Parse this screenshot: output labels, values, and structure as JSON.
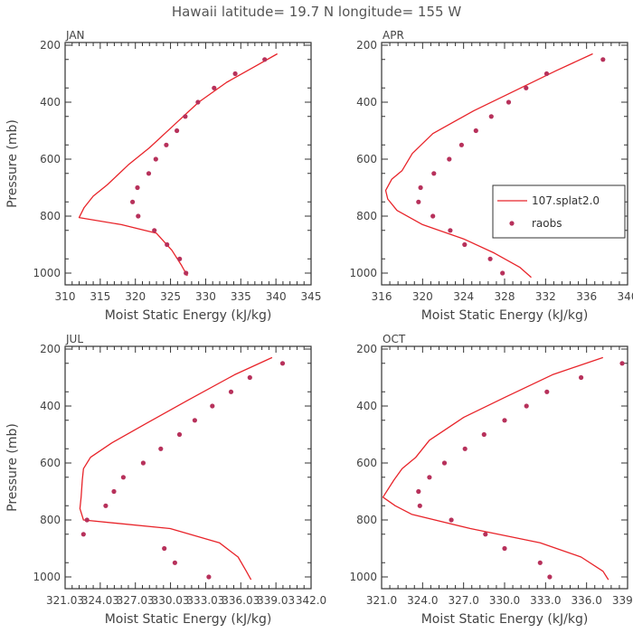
{
  "figure_title": "Hawaii  latitude= 19.7 N longitude= 155 W",
  "chart_data": [
    {
      "type": "line",
      "panel": "JAN",
      "xlabel": "Moist Static Energy (kJ/kg)",
      "ylabel": "Pressure (mb)",
      "xlim": [
        310,
        345
      ],
      "ylim": [
        1000,
        200
      ],
      "x_ticks": [
        "310",
        "315",
        "320",
        "325",
        "330",
        "335",
        "340",
        "345"
      ],
      "x_tick_values": [
        310,
        315,
        320,
        325,
        330,
        335,
        340,
        345
      ],
      "y_ticks": [
        "200",
        "400",
        "600",
        "800",
        "1000"
      ],
      "y_tick_values": [
        200,
        400,
        600,
        800,
        1000
      ],
      "series": [
        {
          "name": "107.splat2.0",
          "kind": "line",
          "x": [
            340.2,
            337,
            333,
            329,
            325.5,
            322,
            319,
            316,
            314,
            312.7,
            312,
            318,
            323,
            325.2,
            326.5,
            327.4
          ],
          "y": [
            230,
            275,
            330,
            400,
            480,
            560,
            620,
            690,
            730,
            770,
            805,
            830,
            860,
            920,
            970,
            1010
          ]
        },
        {
          "name": "raobs",
          "kind": "points",
          "x": [
            338.4,
            334.2,
            331.2,
            328.9,
            327.1,
            325.9,
            324.4,
            322.9,
            321.9,
            320.3,
            319.6,
            320.4,
            322.7,
            324.5,
            326.3,
            327.2
          ],
          "y": [
            250,
            300,
            350,
            400,
            450,
            500,
            550,
            600,
            650,
            700,
            750,
            800,
            850,
            900,
            950,
            1000
          ]
        }
      ]
    },
    {
      "type": "line",
      "panel": "APR",
      "xlabel": "Moist Static Energy (kJ/kg)",
      "ylabel": "",
      "xlim": [
        316,
        340
      ],
      "ylim": [
        1000,
        200
      ],
      "x_ticks": [
        "316",
        "320",
        "324",
        "328",
        "332",
        "336",
        "340"
      ],
      "x_tick_values": [
        316,
        320,
        324,
        328,
        332,
        336,
        340
      ],
      "y_ticks": [
        "200",
        "400",
        "600",
        "800",
        "1000"
      ],
      "y_tick_values": [
        200,
        400,
        600,
        800,
        1000
      ],
      "legend": [
        "107.splat2.0",
        "raobs"
      ],
      "legend_position": "right-middle",
      "series": [
        {
          "name": "107.splat2.0",
          "kind": "line",
          "x": [
            336.6,
            333,
            329,
            325,
            321,
            319,
            318,
            317,
            316.4,
            316.6,
            317.5,
            320,
            324,
            327,
            329.5,
            330.6
          ],
          "y": [
            230,
            290,
            360,
            430,
            510,
            580,
            640,
            670,
            710,
            740,
            780,
            830,
            880,
            930,
            980,
            1015
          ]
        },
        {
          "name": "raobs",
          "kind": "points",
          "x": [
            337.6,
            332.1,
            330.1,
            328.4,
            326.7,
            325.2,
            323.8,
            322.6,
            321.1,
            319.8,
            319.6,
            321.0,
            322.7,
            324.1,
            326.6,
            327.8
          ],
          "y": [
            250,
            300,
            350,
            400,
            450,
            500,
            550,
            600,
            650,
            700,
            750,
            800,
            850,
            900,
            950,
            1000
          ]
        }
      ]
    },
    {
      "type": "line",
      "panel": "JUL",
      "xlabel": "Moist Static Energy (kJ/kg)",
      "ylabel": "Pressure (mb)",
      "xlim": [
        321.03,
        342.03
      ],
      "ylim": [
        1000,
        200
      ],
      "x_ticks": [
        "321.03",
        "324.03",
        "327.03",
        "330.03",
        "333.03",
        "336.03",
        "339.03",
        "342.0"
      ],
      "x_tick_values": [
        321.03,
        324.03,
        327.03,
        330.03,
        333.03,
        336.03,
        339.03,
        342.03
      ],
      "y_ticks": [
        "200",
        "400",
        "600",
        "800",
        "1000"
      ],
      "y_tick_values": [
        200,
        400,
        600,
        800,
        1000
      ],
      "series": [
        {
          "name": "107.splat2.0",
          "kind": "line",
          "x": [
            338.7,
            335.5,
            331.5,
            328,
            325,
            323.2,
            322.6,
            322.5,
            322.4,
            322.3,
            322.6,
            330,
            334.2,
            335.8,
            336.5,
            336.9
          ],
          "y": [
            230,
            290,
            380,
            460,
            530,
            580,
            620,
            660,
            720,
            760,
            800,
            830,
            880,
            930,
            980,
            1010
          ]
        },
        {
          "name": "raobs",
          "kind": "points",
          "x": [
            339.6,
            336.8,
            335.2,
            333.6,
            332.1,
            330.8,
            329.2,
            327.7,
            326.0,
            325.2,
            324.5,
            322.9,
            322.6,
            329.5,
            330.4,
            333.3
          ],
          "y": [
            250,
            300,
            350,
            400,
            450,
            500,
            550,
            600,
            650,
            700,
            750,
            800,
            850,
            900,
            950,
            1000
          ]
        }
      ]
    },
    {
      "type": "line",
      "panel": "OCT",
      "xlabel": "Moist Static Energy (kJ/kg)",
      "ylabel": "",
      "xlim": [
        321.0,
        339.0
      ],
      "ylim": [
        1000,
        200
      ],
      "x_ticks": [
        "321.0",
        "324.0",
        "327.0",
        "330.0",
        "333.0",
        "336.0",
        "339.0"
      ],
      "x_tick_values": [
        321,
        324,
        327,
        330,
        333,
        336,
        339
      ],
      "y_ticks": [
        "200",
        "400",
        "600",
        "800",
        "1000"
      ],
      "y_tick_values": [
        200,
        400,
        600,
        800,
        1000
      ],
      "series": [
        {
          "name": "107.splat2.0",
          "kind": "line",
          "x": [
            337.2,
            333.5,
            330,
            327,
            324.5,
            323.5,
            322.5,
            321.9,
            321.1,
            322,
            323.2,
            327.5,
            332.6,
            335.6,
            337.2,
            337.6
          ],
          "y": [
            230,
            290,
            370,
            440,
            520,
            580,
            620,
            660,
            720,
            750,
            780,
            830,
            880,
            930,
            980,
            1010
          ]
        },
        {
          "name": "raobs",
          "kind": "points",
          "x": [
            338.6,
            335.6,
            333.1,
            331.6,
            330.0,
            328.5,
            327.1,
            325.6,
            324.5,
            323.7,
            323.8,
            326.1,
            328.6,
            330.0,
            332.6,
            333.3
          ],
          "y": [
            250,
            300,
            350,
            400,
            450,
            500,
            550,
            600,
            650,
            700,
            750,
            800,
            850,
            900,
            950,
            1000
          ]
        }
      ]
    }
  ],
  "colors": {
    "line": "#e8242a",
    "points": "#b7315b",
    "axis": "#333333"
  }
}
